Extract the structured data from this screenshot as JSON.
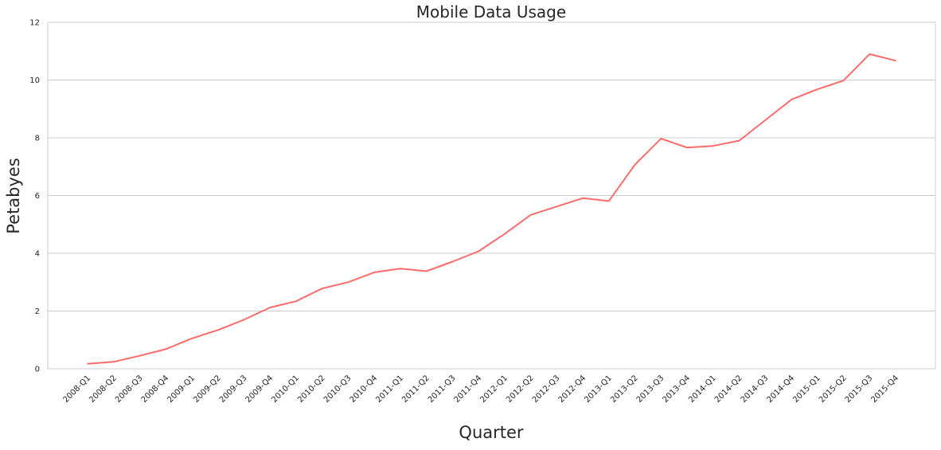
{
  "chart_data": {
    "type": "line",
    "title": "Mobile Data Usage",
    "xlabel": "Quarter",
    "ylabel": "Petabyes",
    "ylim": [
      0,
      12
    ],
    "yticks": [
      0,
      2,
      4,
      6,
      8,
      10,
      12
    ],
    "grid": "horizontal",
    "line_color": "#ff6b6b",
    "categories": [
      "2008-Q1",
      "2008-Q2",
      "2008-Q3",
      "2008-Q4",
      "2009-Q1",
      "2009-Q2",
      "2009-Q3",
      "2009-Q4",
      "2010-Q1",
      "2010-Q2",
      "2010-Q3",
      "2010-Q4",
      "2011-Q1",
      "2011-Q2",
      "2011-Q3",
      "2011-Q4",
      "2012-Q1",
      "2012-Q2",
      "2012-Q3",
      "2012-Q4",
      "2013-Q1",
      "2013-Q2",
      "2013-Q3",
      "2013-Q4",
      "2014-Q1",
      "2014-Q2",
      "2014-Q3",
      "2014-Q4",
      "2015-Q1",
      "2015-Q2",
      "2015-Q3",
      "2015-Q4"
    ],
    "series": [
      {
        "values": [
          0.17,
          0.24,
          0.45,
          0.68,
          1.05,
          1.34,
          1.7,
          2.12,
          2.34,
          2.78,
          3.0,
          3.34,
          3.47,
          3.38,
          3.71,
          4.07,
          4.67,
          5.33,
          5.62,
          5.91,
          5.81,
          7.07,
          7.97,
          7.66,
          7.72,
          7.9,
          8.61,
          9.32,
          9.68,
          9.98,
          10.9,
          10.67
        ]
      }
    ]
  }
}
